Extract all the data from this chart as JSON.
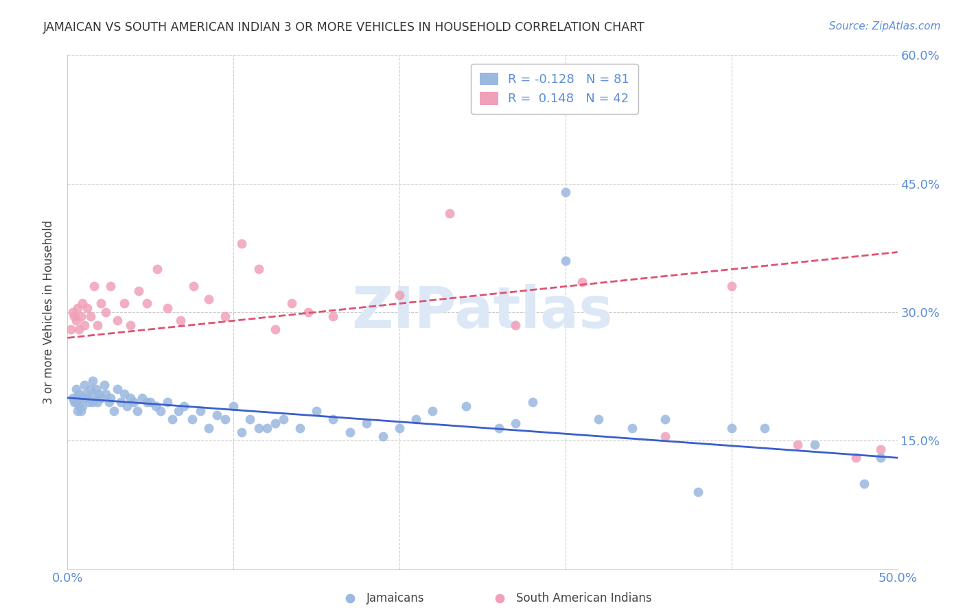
{
  "title": "JAMAICAN VS SOUTH AMERICAN INDIAN 3 OR MORE VEHICLES IN HOUSEHOLD CORRELATION CHART",
  "source": "Source: ZipAtlas.com",
  "ylabel": "3 or more Vehicles in Household",
  "xlim": [
    0.0,
    0.5
  ],
  "ylim": [
    0.0,
    0.6
  ],
  "xticks": [
    0.0,
    0.1,
    0.2,
    0.3,
    0.4,
    0.5
  ],
  "xticklabels": [
    "0.0%",
    "",
    "",
    "",
    "",
    "50.0%"
  ],
  "yticks": [
    0.0,
    0.15,
    0.3,
    0.45,
    0.6
  ],
  "left_yticklabels": [
    "",
    "",
    "",
    "",
    ""
  ],
  "right_yticklabels": [
    "",
    "15.0%",
    "30.0%",
    "45.0%",
    "60.0%"
  ],
  "legend_jamaicans": "Jamaicans",
  "legend_south_american": "South American Indians",
  "R_jamaicans": -0.128,
  "N_jamaicans": 81,
  "R_south_american": 0.148,
  "N_south_american": 42,
  "blue_color": "#9ab8e0",
  "pink_color": "#f0a0b8",
  "blue_line_color": "#3a5fcd",
  "pink_line_color": "#e05070",
  "grid_color": "#cccccc",
  "background_color": "#ffffff",
  "title_color": "#333333",
  "axis_label_color": "#444444",
  "tick_color": "#5b8dd9",
  "watermark_color": "#dce8f5",
  "blue_scatter_x": [
    0.003,
    0.004,
    0.005,
    0.005,
    0.006,
    0.006,
    0.007,
    0.007,
    0.008,
    0.008,
    0.009,
    0.01,
    0.01,
    0.011,
    0.012,
    0.013,
    0.014,
    0.015,
    0.015,
    0.016,
    0.017,
    0.018,
    0.019,
    0.02,
    0.022,
    0.023,
    0.025,
    0.026,
    0.028,
    0.03,
    0.032,
    0.034,
    0.036,
    0.038,
    0.04,
    0.042,
    0.045,
    0.048,
    0.05,
    0.053,
    0.056,
    0.06,
    0.063,
    0.067,
    0.07,
    0.075,
    0.08,
    0.085,
    0.09,
    0.095,
    0.1,
    0.105,
    0.11,
    0.115,
    0.12,
    0.125,
    0.13,
    0.14,
    0.15,
    0.16,
    0.17,
    0.18,
    0.19,
    0.2,
    0.21,
    0.22,
    0.24,
    0.26,
    0.28,
    0.3,
    0.32,
    0.34,
    0.36,
    0.38,
    0.4,
    0.42,
    0.45,
    0.48,
    0.3,
    0.27,
    0.49
  ],
  "blue_scatter_y": [
    0.2,
    0.195,
    0.21,
    0.195,
    0.185,
    0.2,
    0.19,
    0.205,
    0.185,
    0.2,
    0.19,
    0.2,
    0.215,
    0.205,
    0.2,
    0.195,
    0.21,
    0.195,
    0.22,
    0.205,
    0.21,
    0.195,
    0.205,
    0.2,
    0.215,
    0.205,
    0.195,
    0.2,
    0.185,
    0.21,
    0.195,
    0.205,
    0.19,
    0.2,
    0.195,
    0.185,
    0.2,
    0.195,
    0.195,
    0.19,
    0.185,
    0.195,
    0.175,
    0.185,
    0.19,
    0.175,
    0.185,
    0.165,
    0.18,
    0.175,
    0.19,
    0.16,
    0.175,
    0.165,
    0.165,
    0.17,
    0.175,
    0.165,
    0.185,
    0.175,
    0.16,
    0.17,
    0.155,
    0.165,
    0.175,
    0.185,
    0.19,
    0.165,
    0.195,
    0.44,
    0.175,
    0.165,
    0.175,
    0.09,
    0.165,
    0.165,
    0.145,
    0.1,
    0.36,
    0.17,
    0.13
  ],
  "pink_scatter_x": [
    0.002,
    0.003,
    0.004,
    0.005,
    0.006,
    0.007,
    0.008,
    0.009,
    0.01,
    0.012,
    0.014,
    0.016,
    0.018,
    0.02,
    0.023,
    0.026,
    0.03,
    0.034,
    0.038,
    0.043,
    0.048,
    0.054,
    0.06,
    0.068,
    0.076,
    0.085,
    0.095,
    0.105,
    0.115,
    0.125,
    0.135,
    0.145,
    0.16,
    0.2,
    0.23,
    0.27,
    0.31,
    0.36,
    0.4,
    0.44,
    0.475,
    0.49
  ],
  "pink_scatter_y": [
    0.28,
    0.3,
    0.295,
    0.29,
    0.305,
    0.28,
    0.295,
    0.31,
    0.285,
    0.305,
    0.295,
    0.33,
    0.285,
    0.31,
    0.3,
    0.33,
    0.29,
    0.31,
    0.285,
    0.325,
    0.31,
    0.35,
    0.305,
    0.29,
    0.33,
    0.315,
    0.295,
    0.38,
    0.35,
    0.28,
    0.31,
    0.3,
    0.295,
    0.32,
    0.415,
    0.285,
    0.335,
    0.155,
    0.33,
    0.145,
    0.13,
    0.14
  ]
}
